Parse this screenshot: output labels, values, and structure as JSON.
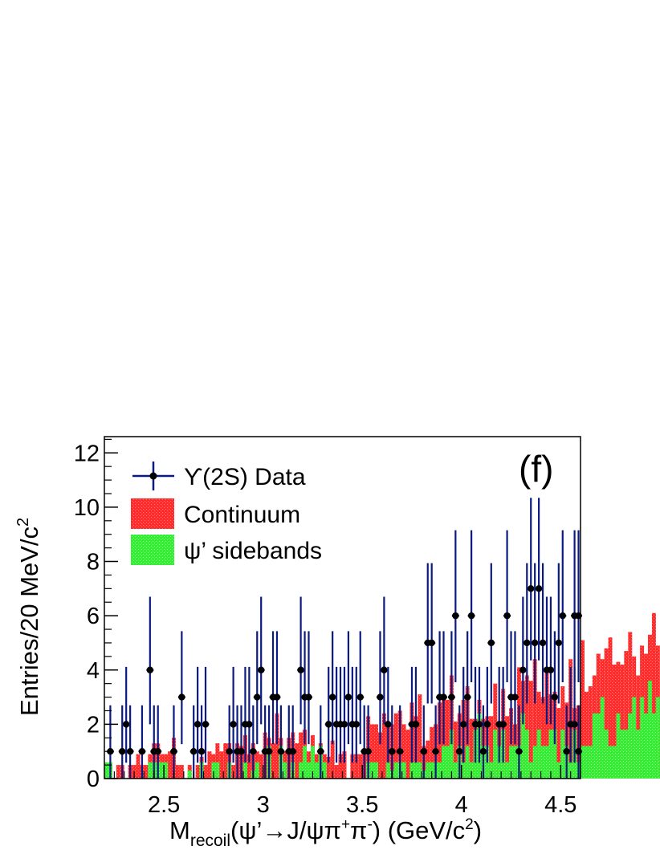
{
  "chart_data": {
    "type": "bar",
    "panel_label": "(f)",
    "xlabel": {
      "main": "M",
      "sub": "recoil",
      "rest": "(ψ’→J/ψπ",
      "plus": "+",
      "pi": "π",
      "minus": "-",
      "units": ") (GeV/c",
      "two": "2",
      "close": ")"
    },
    "ylabel": {
      "main": "Entries/20 MeV/c",
      "sup": "2"
    },
    "xlim": [
      2.2,
      4.6
    ],
    "ylim": [
      0,
      12.6
    ],
    "x_ticks": [
      "2.5",
      "3",
      "3.5",
      "4",
      "4.5"
    ],
    "y_ticks": [
      "0",
      "2",
      "4",
      "6",
      "8",
      "10",
      "12"
    ],
    "grid": false,
    "legend_position": "top-left",
    "legend": {
      "data": "ϒ(2S) Data",
      "continuum": "Continuum",
      "sidebands": "ψ’ sidebands"
    },
    "colors": {
      "data": "#0b1a80",
      "continuum": "#ff2a2a",
      "sidebands": "#33ee33"
    },
    "bin_width": 0.02,
    "bin_start": 2.2,
    "continuum": [
      0.0,
      0.5,
      0.0,
      0.5,
      0.5,
      0.0,
      0.5,
      0.5,
      0.9,
      0.5,
      0.5,
      0.9,
      1.3,
      1.3,
      0.9,
      0.9,
      1.0,
      1.5,
      0.5,
      0.5,
      0.0,
      0.5,
      0.0,
      0.5,
      0.8,
      0.5,
      1.0,
      0.9,
      1.3,
      1.0,
      1.3,
      1.3,
      0.5,
      1.3,
      1.2,
      1.6,
      0.9,
      1.3,
      1.0,
      0.9,
      1.7,
      1.5,
      1.3,
      2.4,
      1.5,
      1.0,
      1.5,
      1.7,
      1.3,
      1.7,
      1.8,
      1.0,
      1.6,
      0.9,
      1.3,
      0.9,
      0.8,
      1.4,
      0.5,
      0.9,
      1.0,
      0.0,
      0.9,
      0.9,
      0.9,
      1.0,
      2.3,
      2.0,
      2.0,
      1.7,
      2.4,
      2.0,
      2.0,
      2.4,
      2.5,
      2.0,
      1.8,
      2.8,
      2.3,
      3.1,
      1.2,
      1.4,
      1.9,
      2.0,
      2.8,
      3.1,
      2.9,
      3.8,
      2.1,
      2.4,
      2.9,
      3.4,
      2.2,
      2.2,
      2.9,
      2.2,
      2.3,
      2.3,
      3.5,
      2.1,
      3.3,
      2.3,
      2.6,
      2.0,
      4.1,
      3.6,
      3.8,
      3.6,
      4.4,
      3.2,
      3.0,
      3.9,
      3.1,
      3.2,
      2.6,
      3.4,
      2.8,
      4.4,
      2.6,
      2.7,
      5.1,
      3.2,
      3.4,
      3.8,
      4.6,
      4.4,
      4.8,
      5.2,
      4.2,
      4.3,
      4.2,
      4.7,
      5.4,
      4.5,
      3.8,
      4.9,
      4.6,
      5.3,
      6.1,
      4.9,
      3.6,
      4.8,
      6.5,
      4.1,
      7.7
    ],
    "sidebands": [
      0.6,
      0.6,
      0.0,
      0.0,
      0.0,
      0.0,
      0.0,
      0.0,
      0.0,
      0.0,
      0.0,
      0.6,
      0.6,
      0.6,
      0.6,
      0.6,
      0.0,
      0.0,
      0.0,
      0.0,
      0.0,
      0.3,
      0.0,
      0.0,
      0.6,
      0.0,
      0.0,
      0.6,
      0.6,
      0.0,
      0.0,
      0.6,
      0.0,
      0.0,
      0.0,
      0.6,
      0.0,
      0.3,
      0.6,
      0.0,
      0.0,
      1.2,
      0.0,
      0.0,
      1.2,
      0.6,
      0.0,
      0.6,
      0.0,
      0.6,
      1.2,
      0.6,
      1.2,
      0.6,
      1.2,
      0.6,
      0.0,
      0.0,
      0.0,
      0.0,
      0.0,
      0.0,
      0.0,
      0.0,
      0.0,
      0.0,
      0.6,
      0.6,
      0.6,
      0.0,
      0.0,
      0.6,
      0.3,
      0.6,
      0.6,
      0.6,
      0.0,
      0.6,
      0.6,
      0.6,
      0.3,
      0.6,
      0.6,
      0.6,
      0.6,
      1.2,
      1.2,
      1.8,
      0.6,
      1.2,
      0.6,
      1.2,
      0.6,
      1.8,
      2.4,
      1.2,
      1.2,
      0.6,
      1.8,
      1.2,
      1.8,
      0.6,
      1.2,
      1.2,
      1.2,
      2.4,
      1.8,
      0.6,
      1.2,
      1.8,
      1.2,
      1.2,
      1.8,
      1.8,
      0.6,
      1.8,
      1.2,
      0.6,
      1.8,
      0.6,
      1.2,
      1.2,
      1.2,
      2.4,
      2.4,
      3.0,
      1.8,
      1.2,
      1.2,
      2.4,
      1.8,
      1.8,
      2.4,
      3.0,
      1.8,
      3.0,
      2.4,
      3.6,
      2.4,
      3.0,
      2.4,
      4.8,
      4.8
    ],
    "data_points": [
      {
        "x": 2.23,
        "y": 1
      },
      {
        "x": 2.29,
        "y": 1
      },
      {
        "x": 2.31,
        "y": 2
      },
      {
        "x": 2.33,
        "y": 1
      },
      {
        "x": 2.39,
        "y": 1
      },
      {
        "x": 2.43,
        "y": 4
      },
      {
        "x": 2.45,
        "y": 1
      },
      {
        "x": 2.47,
        "y": 1
      },
      {
        "x": 2.55,
        "y": 1
      },
      {
        "x": 2.59,
        "y": 3
      },
      {
        "x": 2.65,
        "y": 1
      },
      {
        "x": 2.67,
        "y": 2
      },
      {
        "x": 2.69,
        "y": 1
      },
      {
        "x": 2.71,
        "y": 2
      },
      {
        "x": 2.83,
        "y": 1
      },
      {
        "x": 2.85,
        "y": 2
      },
      {
        "x": 2.87,
        "y": 1
      },
      {
        "x": 2.89,
        "y": 1
      },
      {
        "x": 2.91,
        "y": 2
      },
      {
        "x": 2.93,
        "y": 2
      },
      {
        "x": 2.95,
        "y": 1
      },
      {
        "x": 2.97,
        "y": 3
      },
      {
        "x": 2.99,
        "y": 4
      },
      {
        "x": 3.01,
        "y": 1
      },
      {
        "x": 3.03,
        "y": 1
      },
      {
        "x": 3.05,
        "y": 3
      },
      {
        "x": 3.07,
        "y": 3
      },
      {
        "x": 3.09,
        "y": 1
      },
      {
        "x": 3.13,
        "y": 1
      },
      {
        "x": 3.15,
        "y": 1
      },
      {
        "x": 3.19,
        "y": 4
      },
      {
        "x": 3.21,
        "y": 3
      },
      {
        "x": 3.23,
        "y": 3
      },
      {
        "x": 3.29,
        "y": 1
      },
      {
        "x": 3.33,
        "y": 2
      },
      {
        "x": 3.35,
        "y": 3
      },
      {
        "x": 3.37,
        "y": 2
      },
      {
        "x": 3.39,
        "y": 2
      },
      {
        "x": 3.41,
        "y": 2
      },
      {
        "x": 3.43,
        "y": 3
      },
      {
        "x": 3.45,
        "y": 2
      },
      {
        "x": 3.47,
        "y": 2
      },
      {
        "x": 3.49,
        "y": 3
      },
      {
        "x": 3.51,
        "y": 1
      },
      {
        "x": 3.53,
        "y": 1
      },
      {
        "x": 3.59,
        "y": 3
      },
      {
        "x": 3.61,
        "y": 4
      },
      {
        "x": 3.63,
        "y": 2
      },
      {
        "x": 3.65,
        "y": 1
      },
      {
        "x": 3.69,
        "y": 1
      },
      {
        "x": 3.75,
        "y": 2
      },
      {
        "x": 3.77,
        "y": 2
      },
      {
        "x": 3.81,
        "y": 1
      },
      {
        "x": 3.83,
        "y": 5
      },
      {
        "x": 3.85,
        "y": 5
      },
      {
        "x": 3.87,
        "y": 1
      },
      {
        "x": 3.89,
        "y": 3
      },
      {
        "x": 3.91,
        "y": 3
      },
      {
        "x": 3.95,
        "y": 3
      },
      {
        "x": 3.97,
        "y": 6
      },
      {
        "x": 3.99,
        "y": 1
      },
      {
        "x": 4.01,
        "y": 2
      },
      {
        "x": 4.03,
        "y": 3
      },
      {
        "x": 4.05,
        "y": 6
      },
      {
        "x": 4.07,
        "y": 2
      },
      {
        "x": 4.09,
        "y": 2
      },
      {
        "x": 4.11,
        "y": 1
      },
      {
        "x": 4.13,
        "y": 2
      },
      {
        "x": 4.15,
        "y": 5
      },
      {
        "x": 4.19,
        "y": 2
      },
      {
        "x": 4.21,
        "y": 2
      },
      {
        "x": 4.23,
        "y": 6
      },
      {
        "x": 4.25,
        "y": 3
      },
      {
        "x": 4.27,
        "y": 3
      },
      {
        "x": 4.29,
        "y": 1
      },
      {
        "x": 4.31,
        "y": 4
      },
      {
        "x": 4.33,
        "y": 5
      },
      {
        "x": 4.35,
        "y": 7
      },
      {
        "x": 4.37,
        "y": 5
      },
      {
        "x": 4.39,
        "y": 7
      },
      {
        "x": 4.41,
        "y": 5
      },
      {
        "x": 4.43,
        "y": 4
      },
      {
        "x": 4.45,
        "y": 4
      },
      {
        "x": 4.47,
        "y": 3
      },
      {
        "x": 4.49,
        "y": 5
      },
      {
        "x": 4.51,
        "y": 6
      },
      {
        "x": 4.53,
        "y": 1
      },
      {
        "x": 4.55,
        "y": 2
      },
      {
        "x": 4.57,
        "y": 6
      },
      {
        "x": 4.57,
        "y": 2
      },
      {
        "x": 4.59,
        "y": 1
      },
      {
        "x": 4.59,
        "y": 6
      }
    ]
  }
}
